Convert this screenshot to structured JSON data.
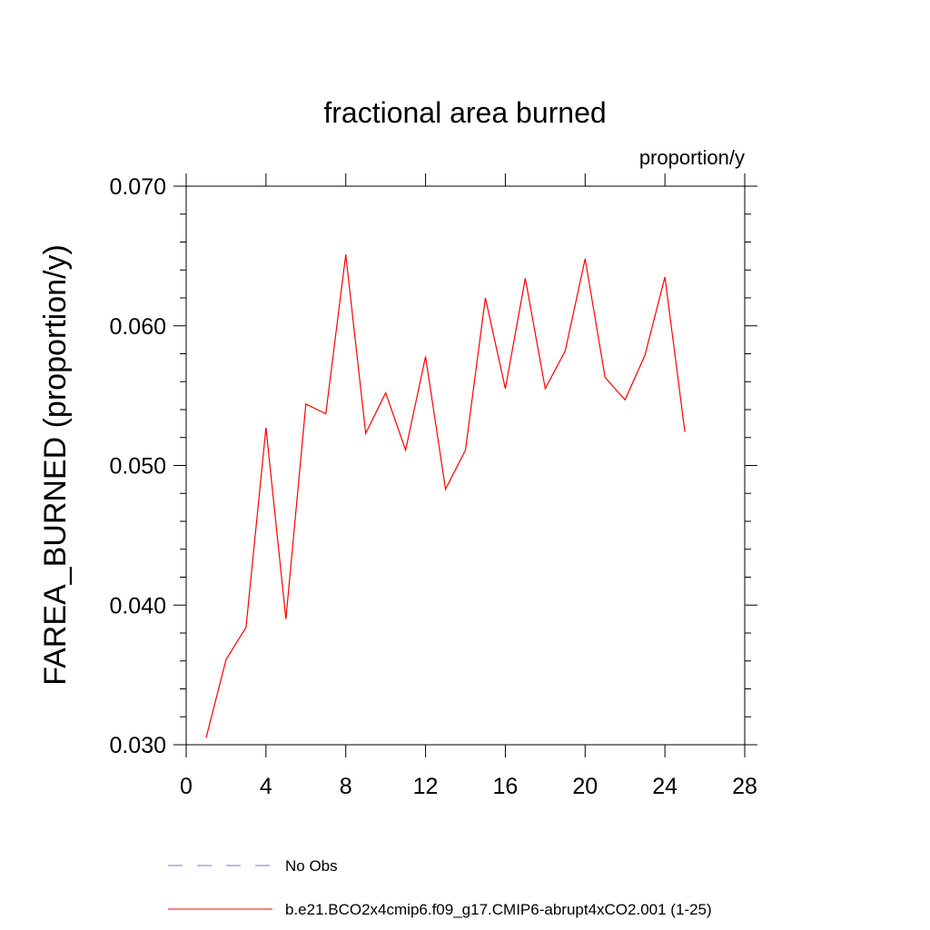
{
  "chart_data": {
    "type": "line",
    "title": "fractional area burned",
    "units_label": "proportion/y",
    "xlabel": "",
    "ylabel": "FAREA_BURNED  (proportion/y)",
    "xlim": [
      0,
      28
    ],
    "ylim": [
      0.03,
      0.07
    ],
    "x_ticks": [
      0,
      4,
      8,
      12,
      16,
      20,
      24,
      28
    ],
    "x_tick_labels": [
      "0",
      "4",
      "8",
      "12",
      "16",
      "20",
      "24",
      "28"
    ],
    "y_ticks": [
      0.03,
      0.04,
      0.05,
      0.06,
      0.07
    ],
    "y_tick_labels": [
      "0.030",
      "0.040",
      "0.050",
      "0.060",
      "0.070"
    ],
    "grid": false,
    "legend_position": "bottom",
    "series": [
      {
        "name": "b.e21.BCO2x4cmip6.f09_g17.CMIP6-abrupt4xCO2.001 (1-25)",
        "color": "#ff0000",
        "dash": "solid",
        "x": [
          1,
          2,
          3,
          4,
          5,
          6,
          7,
          8,
          9,
          10,
          11,
          12,
          13,
          14,
          15,
          16,
          17,
          18,
          19,
          20,
          21,
          22,
          23,
          24,
          25
        ],
        "values": [
          0.0305,
          0.0361,
          0.0384,
          0.0527,
          0.039,
          0.0544,
          0.0537,
          0.0651,
          0.0523,
          0.0552,
          0.0511,
          0.0578,
          0.0483,
          0.0511,
          0.062,
          0.0555,
          0.0634,
          0.0555,
          0.0582,
          0.0648,
          0.0563,
          0.0547,
          0.0579,
          0.0635,
          0.0524
        ]
      }
    ],
    "legend": [
      {
        "label": "No Obs",
        "color": "#7777cc",
        "dash": "dashed"
      },
      {
        "label": "b.e21.BCO2x4cmip6.f09_g17.CMIP6-abrupt4xCO2.001 (1-25)",
        "color": "#ff0000",
        "dash": "solid"
      }
    ]
  }
}
